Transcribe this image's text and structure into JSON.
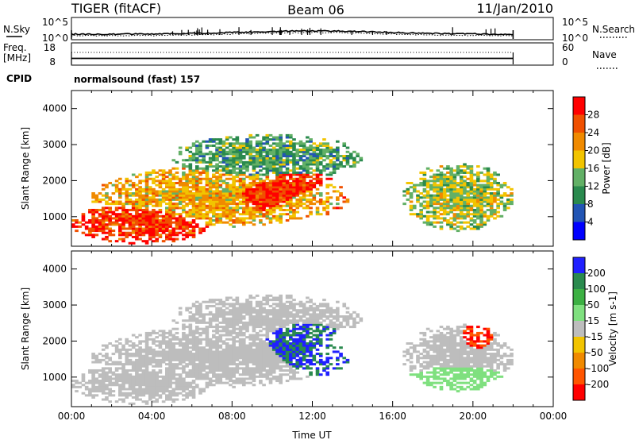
{
  "header": {
    "radar": "TIGER (fitACF)",
    "beam": "Beam 06",
    "date": "11/Jan/2010"
  },
  "noise_panel": {
    "left_label": "N.Sky",
    "right_label": "N.Search",
    "tick_top": "10^5",
    "tick_bottom": "10^0"
  },
  "freq_panel": {
    "left_label_1": "Freq.",
    "left_label_2": "[MHz]",
    "right_label": "Nave",
    "left_ticks": [
      "18",
      "8"
    ],
    "right_ticks": [
      "60",
      "0"
    ]
  },
  "cpid": {
    "label": "CPID",
    "text": "normalsound (fast) 157"
  },
  "colors": {
    "power": [
      "#0000ff",
      "#2255b4",
      "#2a8a4e",
      "#62b066",
      "#f2c400",
      "#f08a00",
      "#f05000",
      "#ff0000"
    ],
    "velocity": [
      "#2020ff",
      "#2a8a4e",
      "#3cb043",
      "#7fe07f",
      "#bdbdbd",
      "#f2c400",
      "#f08a00",
      "#ff5500",
      "#ff0000"
    ]
  },
  "chart_data": [
    {
      "type": "heatmap",
      "quantity": "Power",
      "xlabel": "",
      "ylabel": "Slant Range [km]",
      "xlim": [
        0,
        24
      ],
      "ylim": [
        180,
        4500
      ],
      "yticks": [
        "1000",
        "2000",
        "3000",
        "4000"
      ],
      "colorbar": {
        "label": "Power [dB]",
        "range": [
          0,
          32
        ],
        "tick_labels": [
          "4",
          "8",
          "12",
          "16",
          "20",
          "24",
          "28"
        ]
      },
      "features": [
        {
          "name": "near-range band",
          "t": [
            0,
            7.0
          ],
          "r": [
            250,
            1400
          ],
          "level": 28
        },
        {
          "name": "main band",
          "t": [
            1.0,
            13.5
          ],
          "r": [
            700,
            2400
          ],
          "level": 20
        },
        {
          "name": "strong echoes",
          "t": [
            7.0,
            14.0
          ],
          "r": [
            900,
            2300
          ],
          "level": 28
        },
        {
          "name": "upper patches",
          "t": [
            5.0,
            14.5
          ],
          "r": [
            2000,
            3300
          ],
          "level": 12
        },
        {
          "name": "evening band",
          "t": [
            16.5,
            22.0
          ],
          "r": [
            600,
            2500
          ],
          "level": 16
        }
      ]
    },
    {
      "type": "heatmap",
      "quantity": "Velocity",
      "xlabel": "Time UT",
      "ylabel": "Slant Range [km]",
      "xlim": [
        0,
        24
      ],
      "ylim": [
        180,
        4500
      ],
      "xticks": [
        "00:00",
        "04:00",
        "08:00",
        "12:00",
        "16:00",
        "20:00",
        "00:00"
      ],
      "yticks": [
        "1000",
        "2000",
        "3000",
        "4000"
      ],
      "colorbar": {
        "label": "Velocity [m s-1]",
        "range": [
          -250,
          250
        ],
        "tick_labels": [
          "200",
          "100",
          "50",
          "15",
          "-15",
          "-50",
          "-100",
          "-200"
        ]
      },
      "features": [
        {
          "name": "near-zero band",
          "t": [
            0,
            13.5
          ],
          "r": [
            500,
            2100
          ],
          "level": 0
        },
        {
          "name": "positive streak",
          "t": [
            9.5,
            14.0
          ],
          "r": [
            900,
            2500
          ],
          "level": 200
        },
        {
          "name": "negative patch",
          "t": [
            19.5,
            21.0
          ],
          "r": [
            1800,
            2600
          ],
          "level": -200
        },
        {
          "name": "ground scatter",
          "t": [
            16.5,
            22.0
          ],
          "r": [
            400,
            1300
          ],
          "level": 30
        }
      ]
    }
  ]
}
